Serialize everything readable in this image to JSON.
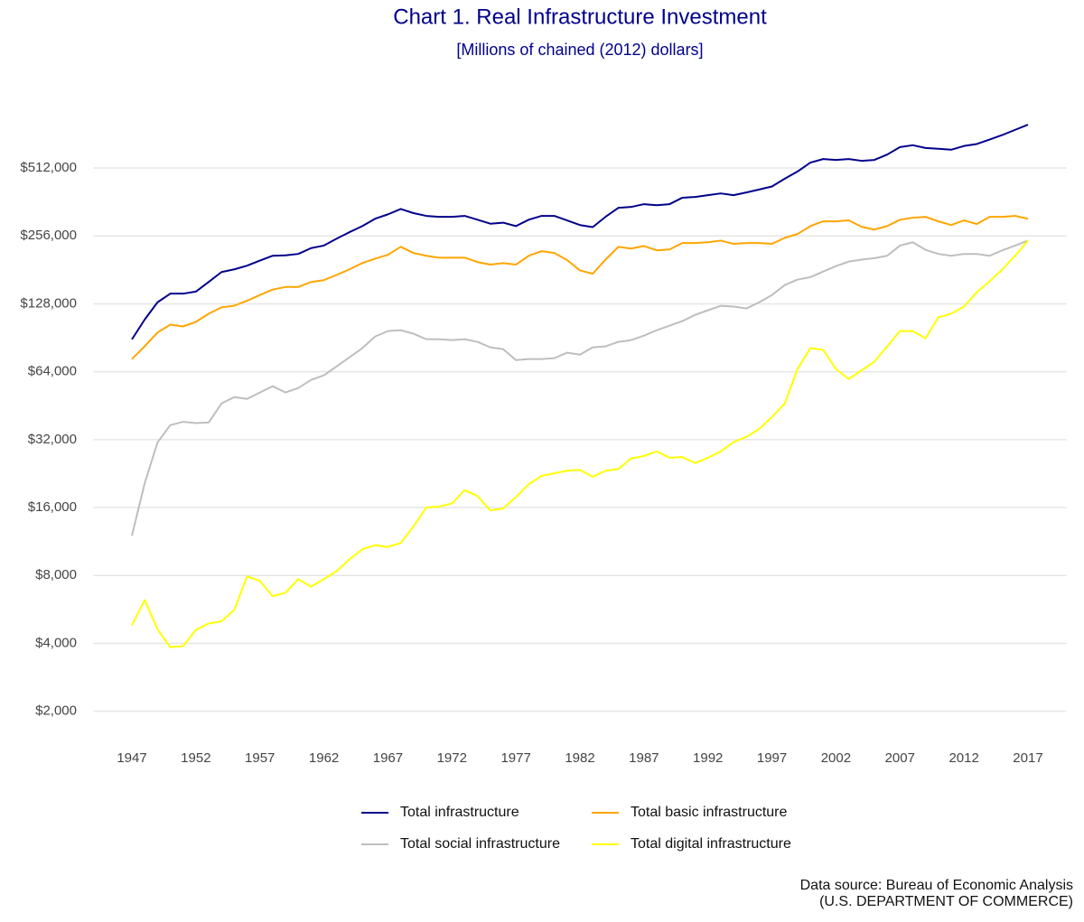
{
  "chart_data": {
    "type": "line",
    "title": "Chart 1. Real Infrastructure Investment",
    "subtitle": "[Millions of chained (2012) dollars]",
    "x": [
      1947,
      1948,
      1949,
      1950,
      1951,
      1952,
      1953,
      1954,
      1955,
      1956,
      1957,
      1958,
      1959,
      1960,
      1961,
      1962,
      1963,
      1964,
      1965,
      1966,
      1967,
      1968,
      1969,
      1970,
      1971,
      1972,
      1973,
      1974,
      1975,
      1976,
      1977,
      1978,
      1979,
      1980,
      1981,
      1982,
      1983,
      1984,
      1985,
      1986,
      1987,
      1988,
      1989,
      1990,
      1991,
      1992,
      1993,
      1994,
      1995,
      1996,
      1997,
      1998,
      1999,
      2000,
      2001,
      2002,
      2003,
      2004,
      2005,
      2006,
      2007,
      2008,
      2009,
      2010,
      2011,
      2012,
      2013,
      2014,
      2015,
      2016,
      2017
    ],
    "series": [
      {
        "name": "Total infrastructure",
        "color": "#00008b",
        "values": [
          89000,
          109000,
          130000,
          142000,
          142000,
          145000,
          160000,
          177000,
          182000,
          189000,
          199000,
          209000,
          210000,
          213000,
          226000,
          232000,
          249000,
          266000,
          283000,
          305000,
          319000,
          337000,
          323000,
          314000,
          311000,
          311000,
          314000,
          302000,
          290000,
          293000,
          283000,
          302000,
          314000,
          314000,
          300000,
          286000,
          280000,
          311000,
          341000,
          344000,
          354000,
          350000,
          354000,
          378000,
          381000,
          388000,
          395000,
          388000,
          399000,
          411000,
          424000,
          459000,
          494000,
          541000,
          561000,
          556000,
          561000,
          551000,
          556000,
          587000,
          634000,
          646000,
          628000,
          623000,
          617000,
          641000,
          654000,
          684000,
          717000,
          756000,
          797000
        ]
      },
      {
        "name": "Total basic infrastructure",
        "color": "#ffa500",
        "values": [
          72800,
          83000,
          95400,
          103500,
          101600,
          106500,
          115700,
          123400,
          125600,
          132000,
          140000,
          148000,
          152000,
          152000,
          160000,
          163000,
          172000,
          182000,
          194000,
          203000,
          211000,
          229000,
          215000,
          209000,
          205000,
          205000,
          205000,
          196000,
          191000,
          194000,
          191000,
          209000,
          219000,
          215000,
          200000,
          180000,
          174000,
          201000,
          229000,
          225000,
          231000,
          221000,
          223000,
          238000,
          238000,
          240000,
          244000,
          236000,
          238000,
          238000,
          236000,
          251000,
          261000,
          283000,
          297000,
          297000,
          300000,
          281000,
          273000,
          283000,
          302000,
          308000,
          311000,
          297000,
          286000,
          300000,
          289000,
          311000,
          311000,
          314000,
          305000
        ]
      },
      {
        "name": "Total social infrastructure",
        "color": "#bebebe",
        "values": [
          12000,
          20500,
          31100,
          37100,
          38400,
          37900,
          38100,
          46300,
          49400,
          48500,
          51800,
          55200,
          51800,
          54200,
          58900,
          61700,
          67600,
          74200,
          81400,
          91700,
          96900,
          97800,
          94300,
          89200,
          89200,
          88400,
          89200,
          86800,
          82100,
          80600,
          72100,
          72800,
          72800,
          73500,
          77700,
          76200,
          82100,
          82900,
          86800,
          88400,
          92500,
          97800,
          102400,
          107300,
          114400,
          119800,
          125400,
          124400,
          122100,
          130000,
          140000,
          155000,
          164000,
          168000,
          178000,
          188000,
          197000,
          201000,
          204000,
          209000,
          232000,
          240000,
          222000,
          213000,
          209000,
          213000,
          213000,
          209000,
          221000,
          232000,
          244000
        ]
      },
      {
        "name": "Total digital infrastructure",
        "color": "#ffff00",
        "values": [
          4810,
          6230,
          4620,
          3850,
          3890,
          4590,
          4900,
          5010,
          5630,
          7930,
          7570,
          6470,
          6710,
          7710,
          7130,
          7710,
          8370,
          9440,
          10450,
          10900,
          10700,
          11150,
          13200,
          16000,
          16150,
          16700,
          19100,
          18000,
          15550,
          15850,
          17800,
          20300,
          22100,
          22700,
          23300,
          23500,
          21900,
          23300,
          23700,
          26400,
          27100,
          28400,
          26600,
          26800,
          25200,
          26600,
          28400,
          31200,
          32900,
          35700,
          40300,
          46300,
          65800,
          81400,
          80000,
          65800,
          59400,
          64900,
          70900,
          82900,
          96900,
          96900,
          90000,
          111500,
          115700,
          124500,
          144000,
          161000,
          182000,
          209000,
          244000
        ]
      }
    ],
    "xlim": [
      1944,
      2020
    ],
    "xticks": [
      1947,
      1952,
      1957,
      1962,
      1967,
      1972,
      1977,
      1982,
      1987,
      1992,
      1997,
      2002,
      2007,
      2012,
      2017
    ],
    "ylim": [
      1800,
      1000000
    ],
    "y_scale": "log",
    "yticks": [
      {
        "value": 2000,
        "label": "$2,000"
      },
      {
        "value": 4000,
        "label": "$4,000"
      },
      {
        "value": 8000,
        "label": "$8,000"
      },
      {
        "value": 16000,
        "label": "$16,000"
      },
      {
        "value": 32000,
        "label": "$32,000"
      },
      {
        "value": 64000,
        "label": "$64,000"
      },
      {
        "value": 128000,
        "label": "$128,000"
      },
      {
        "value": 256000,
        "label": "$256,000"
      },
      {
        "value": 512000,
        "label": "$512,000"
      }
    ],
    "grid": true,
    "legend_position": "bottom",
    "source": [
      "Data source: Bureau of Economic Analysis",
      "(U.S. DEPARTMENT OF COMMERCE)"
    ]
  }
}
